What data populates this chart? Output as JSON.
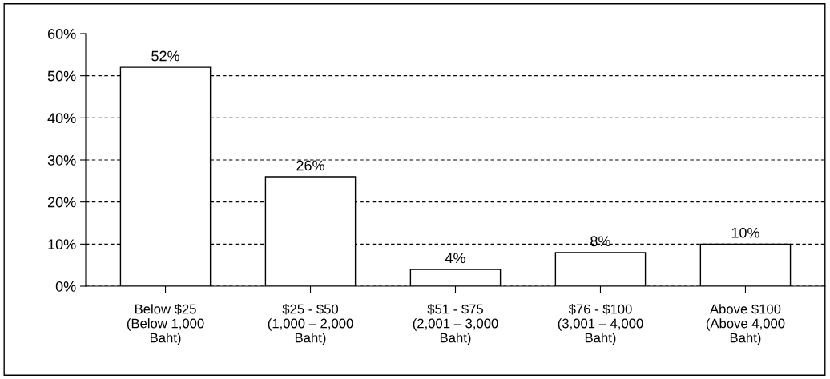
{
  "chart_data": {
    "type": "bar",
    "categories": [
      "Below $25\n(Below 1,000\nBaht)",
      "$25 - $50\n(1,000 – 2,000\nBaht)",
      "$51 - $75\n(2,001 – 3,000\nBaht)",
      "$76 - $100\n(3,001 – 4,000\nBaht)",
      "Above $100\n(Above 4,000\nBaht)"
    ],
    "values": [
      52,
      26,
      4,
      8,
      10
    ],
    "value_labels": [
      "52%",
      "26%",
      "4%",
      "8%",
      "10%"
    ],
    "color": "#ffffff",
    "ylim": [
      0,
      60
    ],
    "yticks": [
      {
        "value": 0,
        "label": "0%"
      },
      {
        "value": 10,
        "label": "10%"
      },
      {
        "value": 20,
        "label": "20%"
      },
      {
        "value": 30,
        "label": "30%"
      },
      {
        "value": 40,
        "label": "40%"
      },
      {
        "value": 50,
        "label": "50%"
      },
      {
        "value": 60,
        "label": "60%"
      }
    ],
    "grid": "y",
    "legend": false
  }
}
